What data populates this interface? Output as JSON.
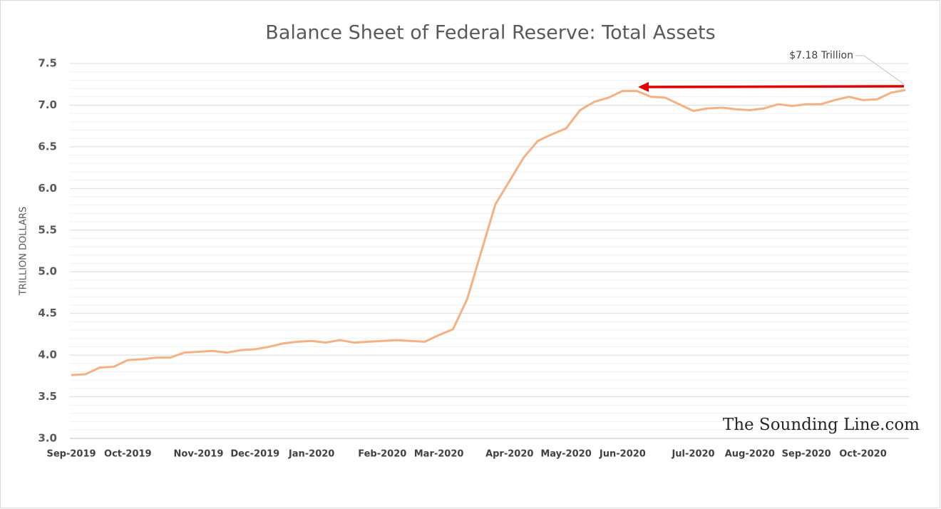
{
  "chart_data": {
    "type": "line",
    "title": "Balance Sheet of Federal Reserve: Total Assets",
    "y_label": "TRILLION DOLLARS",
    "annotation": "$7.18 Trillion",
    "watermark": "The Sounding Line.com",
    "categories": [
      "Sep-2019",
      null,
      null,
      null,
      "Oct-2019",
      null,
      null,
      null,
      null,
      "Nov-2019",
      null,
      null,
      null,
      "Dec-2019",
      null,
      null,
      null,
      "Jan-2020",
      null,
      null,
      null,
      null,
      "Feb-2020",
      null,
      null,
      null,
      "Mar-2020",
      null,
      null,
      null,
      null,
      "Apr-2020",
      null,
      null,
      null,
      "May-2020",
      null,
      null,
      null,
      "Jun-2020",
      null,
      null,
      null,
      null,
      "Jul-2020",
      null,
      null,
      null,
      "Aug-2020",
      null,
      null,
      null,
      "Sep-2020",
      null,
      null,
      null,
      "Oct-2020",
      null,
      null,
      null
    ],
    "series": [
      {
        "name": "Total Assets",
        "color": "#f4b183",
        "values": [
          3.76,
          3.77,
          3.85,
          3.86,
          3.94,
          3.95,
          3.97,
          3.97,
          4.03,
          4.04,
          4.05,
          4.03,
          4.06,
          4.07,
          4.1,
          4.14,
          4.16,
          4.17,
          4.15,
          4.18,
          4.15,
          4.16,
          4.17,
          4.18,
          4.17,
          4.16,
          4.24,
          4.31,
          4.67,
          5.24,
          5.81,
          6.09,
          6.37,
          6.57,
          6.65,
          6.72,
          6.94,
          7.04,
          7.09,
          7.17,
          7.17,
          7.1,
          7.09,
          7.01,
          6.93,
          6.96,
          6.97,
          6.95,
          6.94,
          6.96,
          7.01,
          6.99,
          7.01,
          7.01,
          7.06,
          7.1,
          7.06,
          7.07,
          7.15,
          7.18
        ]
      }
    ],
    "ylim": [
      3.0,
      7.5
    ],
    "yticks": [
      {
        "value": 3.0,
        "label": "3.0"
      },
      {
        "value": 3.5,
        "label": "3.5"
      },
      {
        "value": 4.0,
        "label": "4.0"
      },
      {
        "value": 4.5,
        "label": "4.5"
      },
      {
        "value": 5.0,
        "label": "5.0"
      },
      {
        "value": 5.5,
        "label": "5.5"
      },
      {
        "value": 6.0,
        "label": "6.0"
      },
      {
        "value": 6.5,
        "label": "6.5"
      },
      {
        "value": 7.0,
        "label": "7.0"
      },
      {
        "value": 7.5,
        "label": "7.5"
      }
    ],
    "grid": true
  }
}
